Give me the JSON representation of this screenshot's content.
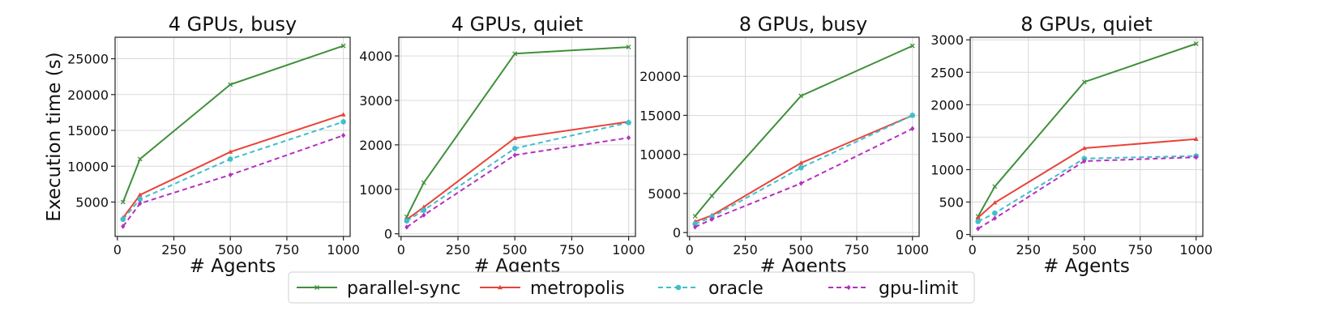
{
  "chart_data": [
    {
      "type": "line",
      "title": "4 GPUs, busy",
      "xlabel": "# Agents",
      "ylabel": "Execution time (s)",
      "xlim": [
        -10,
        1030
      ],
      "ylim": [
        200,
        28000
      ],
      "xticks": [
        0,
        250,
        500,
        750,
        1000
      ],
      "yticks": [
        5000,
        10000,
        15000,
        20000,
        25000
      ],
      "grid": true,
      "x": [
        25,
        100,
        500,
        1000
      ],
      "series": [
        {
          "name": "parallel-sync",
          "values": [
            5000,
            11000,
            21400,
            26800
          ]
        },
        {
          "name": "metropolis",
          "values": [
            2800,
            6000,
            12000,
            17200
          ]
        },
        {
          "name": "oracle",
          "values": [
            2600,
            5400,
            11000,
            16200
          ]
        },
        {
          "name": "gpu-limit",
          "values": [
            1600,
            4800,
            8800,
            14300
          ]
        }
      ]
    },
    {
      "type": "line",
      "title": "4 GPUs, quiet",
      "xlabel": "# Agents",
      "ylabel": "",
      "xlim": [
        -10,
        1030
      ],
      "ylim": [
        -60,
        4420
      ],
      "xticks": [
        0,
        250,
        500,
        750,
        1000
      ],
      "yticks": [
        0,
        1000,
        2000,
        3000,
        4000
      ],
      "grid": true,
      "x": [
        25,
        100,
        500,
        1000
      ],
      "series": [
        {
          "name": "parallel-sync",
          "values": [
            380,
            1150,
            4050,
            4200
          ]
        },
        {
          "name": "metropolis",
          "values": [
            320,
            600,
            2150,
            2520
          ]
        },
        {
          "name": "oracle",
          "values": [
            290,
            530,
            1920,
            2500
          ]
        },
        {
          "name": "gpu-limit",
          "values": [
            150,
            420,
            1770,
            2160
          ]
        }
      ]
    },
    {
      "type": "line",
      "title": "8 GPUs, busy",
      "xlabel": "# Agents",
      "ylabel": "",
      "xlim": [
        -10,
        1030
      ],
      "ylim": [
        -500,
        25000
      ],
      "xticks": [
        0,
        250,
        500,
        750,
        1000
      ],
      "yticks": [
        0,
        5000,
        10000,
        15000,
        20000
      ],
      "grid": true,
      "x": [
        25,
        100,
        500,
        1000
      ],
      "series": [
        {
          "name": "parallel-sync",
          "values": [
            2100,
            4700,
            17500,
            23900
          ]
        },
        {
          "name": "metropolis",
          "values": [
            1400,
            2200,
            8900,
            15000
          ]
        },
        {
          "name": "oracle",
          "values": [
            1100,
            2000,
            8300,
            15000
          ]
        },
        {
          "name": "gpu-limit",
          "values": [
            700,
            1700,
            6300,
            13300
          ]
        }
      ]
    },
    {
      "type": "line",
      "title": "8 GPUs, quiet",
      "xlabel": "# Agents",
      "ylabel": "",
      "xlim": [
        -10,
        1030
      ],
      "ylim": [
        -30,
        3040
      ],
      "xticks": [
        0,
        250,
        500,
        750,
        1000
      ],
      "yticks": [
        0,
        500,
        1000,
        1500,
        2000,
        2500,
        3000
      ],
      "grid": true,
      "x": [
        25,
        100,
        500,
        1000
      ],
      "series": [
        {
          "name": "parallel-sync",
          "values": [
            280,
            740,
            2350,
            2940
          ]
        },
        {
          "name": "metropolis",
          "values": [
            260,
            490,
            1330,
            1470
          ]
        },
        {
          "name": "oracle",
          "values": [
            200,
            330,
            1170,
            1210
          ]
        },
        {
          "name": "gpu-limit",
          "values": [
            90,
            250,
            1130,
            1190
          ]
        }
      ]
    }
  ],
  "legend": {
    "placement": "bottom-center",
    "entries": [
      {
        "name": "parallel-sync",
        "color": "#3f8f3a",
        "dash": "solid",
        "marker": "x"
      },
      {
        "name": "metropolis",
        "color": "#e8443a",
        "dash": "solid",
        "marker": "triangle"
      },
      {
        "name": "oracle",
        "color": "#3fbfcc",
        "dash": "dashed",
        "marker": "circle"
      },
      {
        "name": "gpu-limit",
        "color": "#b52fc0",
        "dash": "dashed",
        "marker": "diamond"
      }
    ]
  }
}
